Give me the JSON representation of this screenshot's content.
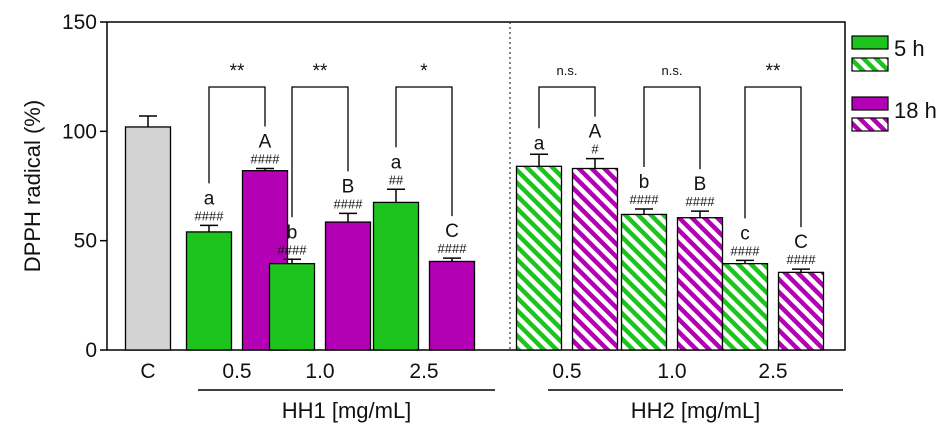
{
  "chart_data": {
    "type": "bar",
    "ylabel": "DPPH radical (%)",
    "ylim": [
      0,
      150
    ],
    "yticks": [
      "0",
      "50",
      "100",
      "150"
    ],
    "legend": {
      "position": "top-right",
      "entries": [
        {
          "name": "5 h",
          "color": "#1ec41e",
          "pattern": [
            "solid",
            "hatched"
          ]
        },
        {
          "name": "18 h",
          "color": "#b400b4",
          "pattern": [
            "solid",
            "hatched"
          ]
        }
      ]
    },
    "control": {
      "label": "C",
      "value": 102,
      "error": 5,
      "color": "#d3d3d3"
    },
    "groups": [
      {
        "label": "HH1 [mg/mL]",
        "pattern": "solid",
        "concentrations": [
          {
            "conc": "0.5",
            "five_h": {
              "value": 54,
              "error": 3,
              "letter": "a",
              "hash": "####"
            },
            "eighteen_h": {
              "value": 82,
              "error": 1,
              "letter": "A",
              "hash": "####"
            },
            "sig": "**"
          },
          {
            "conc": "1.0",
            "five_h": {
              "value": 39.5,
              "error": 2,
              "letter": "b",
              "hash": "####"
            },
            "eighteen_h": {
              "value": 58.5,
              "error": 4,
              "letter": "B",
              "hash": "####"
            },
            "sig": "**"
          },
          {
            "conc": "2.5",
            "five_h": {
              "value": 67.5,
              "error": 6,
              "letter": "a",
              "hash": "##"
            },
            "eighteen_h": {
              "value": 40.5,
              "error": 1.5,
              "letter": "C",
              "hash": "####"
            },
            "sig": "*"
          }
        ]
      },
      {
        "label": "HH2 [mg/mL]",
        "pattern": "hatched",
        "concentrations": [
          {
            "conc": "0.5",
            "five_h": {
              "value": 84,
              "error": 5.5,
              "letter": "a",
              "hash": ""
            },
            "eighteen_h": {
              "value": 83,
              "error": 4.5,
              "letter": "A",
              "hash": "#"
            },
            "sig": "n.s."
          },
          {
            "conc": "1.0",
            "five_h": {
              "value": 62,
              "error": 2.5,
              "letter": "b",
              "hash": "####"
            },
            "eighteen_h": {
              "value": 60.5,
              "error": 3,
              "letter": "B",
              "hash": "####"
            },
            "sig": "n.s."
          },
          {
            "conc": "2.5",
            "five_h": {
              "value": 39.5,
              "error": 1.5,
              "letter": "c",
              "hash": "####"
            },
            "eighteen_h": {
              "value": 35.5,
              "error": 1.5,
              "letter": "C",
              "hash": "####"
            },
            "sig": "**"
          }
        ]
      }
    ]
  }
}
